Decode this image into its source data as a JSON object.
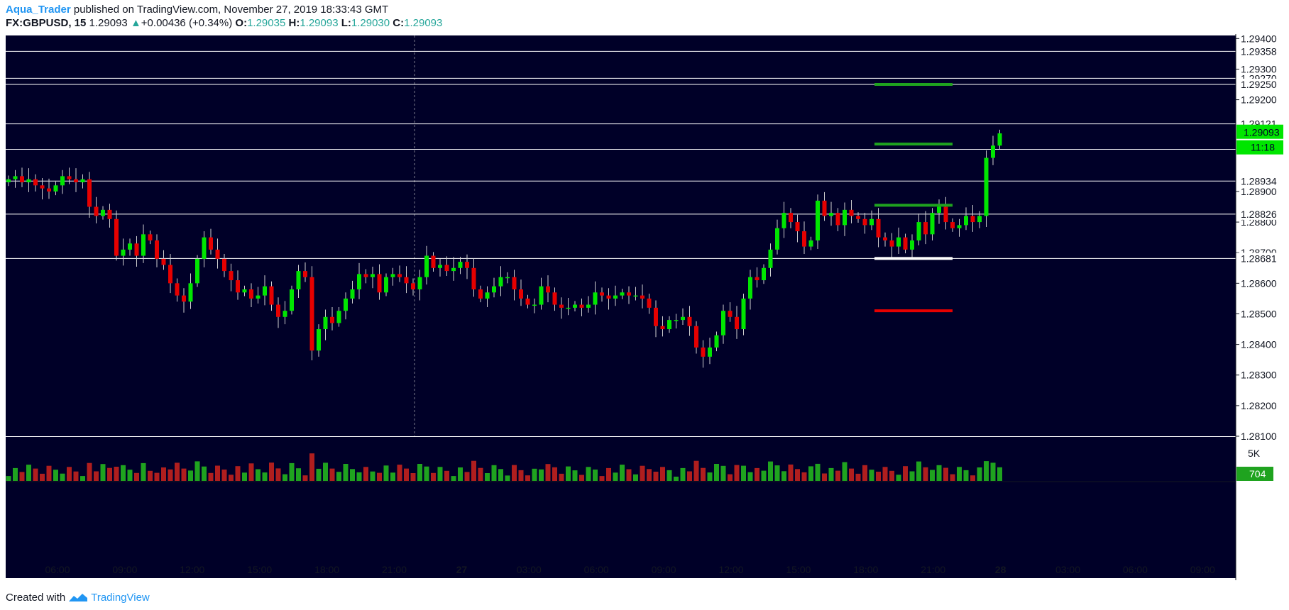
{
  "header": {
    "author": "Aqua_Trader",
    "published": " published on TradingView.com, November 27, 2019 18:33:43 GMT",
    "symbol": "FX:GBPUSD, 15",
    "price": "1.29093",
    "change": "+0.00436 (+0.34%)",
    "o_label": "O:",
    "o_value": "1.29035",
    "h_label": "H:",
    "h_value": "1.29093",
    "l_label": "L:",
    "l_value": "1.29030",
    "c_label": "C:",
    "c_value": "1.29093"
  },
  "footer": {
    "created_with": "Created with",
    "brand": "TradingView"
  },
  "colors": {
    "background": "#000028",
    "up": "#00e600",
    "down": "#e60000",
    "vol_up": "#1fa31f",
    "vol_down": "#b01e1e",
    "grid": "#ffffff",
    "axis_bg": "#ffffff",
    "axis_text": "#131722"
  },
  "chart_data": {
    "type": "candlestick",
    "symbol": "FX:GBPUSD",
    "interval": "15",
    "ylim": [
      1.281,
      1.2941
    ],
    "y_ticks": [
      "1.29400",
      "1.29300",
      "1.29200",
      "1.28900",
      "1.28800",
      "1.28700",
      "1.28600",
      "1.28500",
      "1.28400",
      "1.28300",
      "1.28200",
      "1.28100"
    ],
    "x_ticks": [
      "06:00",
      "09:00",
      "12:00",
      "15:00",
      "18:00",
      "21:00",
      "27",
      "03:00",
      "06:00",
      "09:00",
      "12:00",
      "15:00",
      "18:00",
      "21:00",
      "28",
      "03:00",
      "06:00",
      "09:00"
    ],
    "horizontal_levels": [
      1.29358,
      1.2927,
      1.2925,
      1.29121,
      1.29038,
      1.28934,
      1.28826,
      1.28681
    ],
    "level_labels": [
      "1.29358",
      "1.29270",
      "1.29250",
      "1.29121",
      "1.29038",
      "1.28934",
      "1.28826",
      "1.28681"
    ],
    "target_marks": [
      {
        "price": 1.2925,
        "color": "green"
      },
      {
        "price": 1.29055,
        "color": "green"
      },
      {
        "price": 1.28855,
        "color": "green"
      },
      {
        "price": 1.28681,
        "color": "white"
      },
      {
        "price": 1.2851,
        "color": "red"
      }
    ],
    "last_price": "1.29093",
    "countdown": "11:18",
    "volume_label": "704",
    "volume_tick": "5K",
    "closes": [
      1.2894,
      1.2895,
      1.2893,
      1.2894,
      1.2892,
      1.2891,
      1.289,
      1.2892,
      1.2895,
      1.2894,
      1.2893,
      1.2894,
      1.2885,
      1.2882,
      1.2884,
      1.2881,
      1.2869,
      1.2871,
      1.2873,
      1.2869,
      1.2876,
      1.2874,
      1.2868,
      1.2866,
      1.286,
      1.2856,
      1.2854,
      1.286,
      1.2868,
      1.2875,
      1.2871,
      1.2868,
      1.2864,
      1.2861,
      1.2857,
      1.2858,
      1.2855,
      1.2856,
      1.2859,
      1.2853,
      1.2849,
      1.2851,
      1.2858,
      1.2864,
      1.2862,
      1.2838,
      1.2845,
      1.2849,
      1.2847,
      1.2851,
      1.2855,
      1.2858,
      1.2863,
      1.2862,
      1.2863,
      1.2857,
      1.2862,
      1.2863,
      1.2862,
      1.286,
      1.2858,
      1.2862,
      1.2869,
      1.2865,
      1.2866,
      1.2864,
      1.2865,
      1.2867,
      1.2865,
      1.2858,
      1.2855,
      1.2857,
      1.2859,
      1.2862,
      1.2862,
      1.2858,
      1.2855,
      1.2853,
      1.2853,
      1.2859,
      1.2857,
      1.2853,
      1.2852,
      1.2852,
      1.2853,
      1.2852,
      1.2853,
      1.2857,
      1.2856,
      1.2855,
      1.2856,
      1.2857,
      1.2856,
      1.2856,
      1.2855,
      1.2852,
      1.2846,
      1.2845,
      1.2848,
      1.2848,
      1.2849,
      1.2846,
      1.2839,
      1.2836,
      1.2839,
      1.2843,
      1.2851,
      1.2849,
      1.2845,
      1.2855,
      1.2862,
      1.2861,
      1.2865,
      1.2871,
      1.2878,
      1.2883,
      1.288,
      1.2877,
      1.2872,
      1.2874,
      1.2887,
      1.2882,
      1.2883,
      1.2879,
      1.2884,
      1.2882,
      1.2881,
      1.2879,
      1.2881,
      1.2875,
      1.2874,
      1.2872,
      1.2875,
      1.2871,
      1.2874,
      1.288,
      1.2876,
      1.2883,
      1.2885,
      1.288,
      1.2878,
      1.2879,
      1.2882,
      1.288,
      1.2882,
      1.2901,
      1.2905,
      1.2909
    ]
  }
}
